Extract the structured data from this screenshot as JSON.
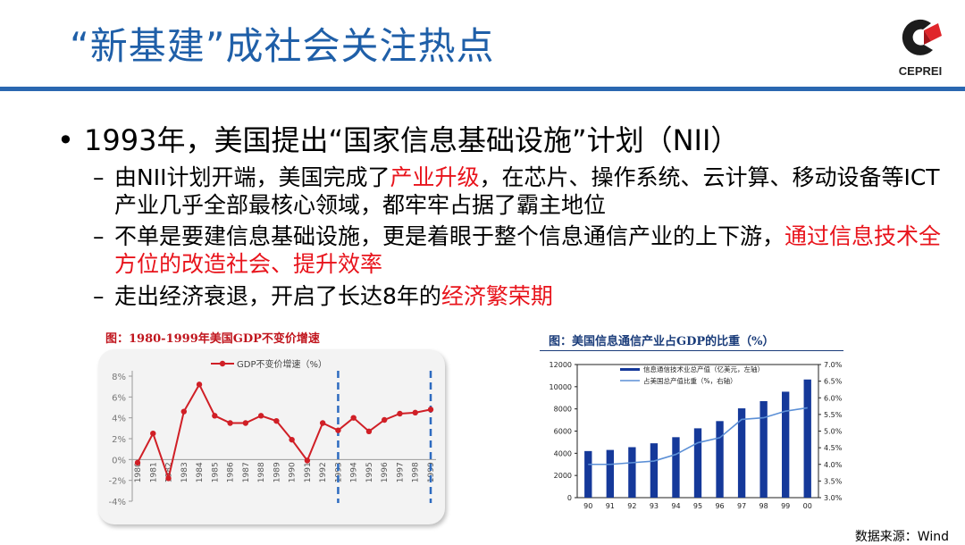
{
  "slide": {
    "title": "“新基建”成社会关注热点",
    "logo_text": "CEPREI",
    "bullet": "1993年，美国提出“国家信息基础设施”计划（NII）",
    "subs": [
      {
        "dash": "–",
        "parts": [
          {
            "text": "由NII计划开端，美国完成了",
            "red": false
          },
          {
            "text": "产业升级",
            "red": true
          },
          {
            "text": "，在芯片、操作系统、云计算、移动设备等ICT产业几乎全部最核心领域，都牢牢占据了霸主地位",
            "red": false
          }
        ]
      },
      {
        "dash": "–",
        "parts": [
          {
            "text": "不单是要建信息基础设施，更是着眼于整个信息通信产业的上下游，",
            "red": false
          },
          {
            "text": "通过信息技术全方位的改造社会、提升效率",
            "red": true
          }
        ]
      },
      {
        "dash": "–",
        "parts": [
          {
            "text": "走出经济衰退，开启了长达8年的",
            "red": false
          },
          {
            "text": "经济繁荣期",
            "red": true
          }
        ]
      }
    ],
    "source": "数据来源：Wind",
    "colors": {
      "title": "#1f5fa8",
      "rule": "#2a67b0",
      "highlight": "#e8141c",
      "line_series": "#d01f26",
      "bar": "#15399a",
      "pct_line": "#5b8fd6"
    }
  },
  "chart_data": [
    {
      "type": "line",
      "title": "图：1980-1999年美国GDP不变价增速",
      "x": [
        "1980",
        "1981",
        "1982",
        "1983",
        "1984",
        "1985",
        "1986",
        "1987",
        "1988",
        "1989",
        "1990",
        "1991",
        "1992",
        "1993",
        "1994",
        "1995",
        "1996",
        "1997",
        "1998",
        "1999"
      ],
      "series": [
        {
          "name": "GDP不变价增速（%）",
          "values": [
            -0.3,
            2.5,
            -1.8,
            4.6,
            7.2,
            4.2,
            3.5,
            3.5,
            4.2,
            3.7,
            1.9,
            -0.1,
            3.5,
            2.8,
            4.0,
            2.7,
            3.8,
            4.4,
            4.5,
            4.8
          ]
        }
      ],
      "yticks": [
        "-4%",
        "-2%",
        "0%",
        "2%",
        "4%",
        "6%",
        "8%"
      ],
      "ylim": [
        -4,
        8
      ],
      "highlight_years": [
        "1993",
        "1999"
      ],
      "legend": "top"
    },
    {
      "type": "bar",
      "title": "图：美国信息通信产业占GDP的比重（%）",
      "categories": [
        "90",
        "91",
        "92",
        "93",
        "94",
        "95",
        "96",
        "97",
        "98",
        "99",
        "00"
      ],
      "series": [
        {
          "name": "信息通信技术业总产值（亿美元，左轴）",
          "values": [
            4200,
            4300,
            4550,
            4900,
            5450,
            6250,
            6900,
            8050,
            8700,
            9550,
            10650
          ],
          "axis": "left"
        },
        {
          "name": "占美国总产值比重（%，右轴）",
          "values": [
            4.0,
            4.0,
            4.05,
            4.1,
            4.3,
            4.65,
            4.8,
            5.35,
            5.4,
            5.6,
            5.7
          ],
          "axis": "right",
          "type": "line"
        }
      ],
      "yticks_left": [
        "0",
        "2000",
        "4000",
        "6000",
        "8000",
        "10000",
        "12000"
      ],
      "yticks_right": [
        "3.0%",
        "3.5%",
        "4.0%",
        "4.5%",
        "5.0%",
        "5.5%",
        "6.0%",
        "6.5%",
        "7.0%"
      ],
      "ylim_left": [
        0,
        12000
      ],
      "ylim_right": [
        3.0,
        7.0
      ],
      "legend": "top"
    }
  ]
}
